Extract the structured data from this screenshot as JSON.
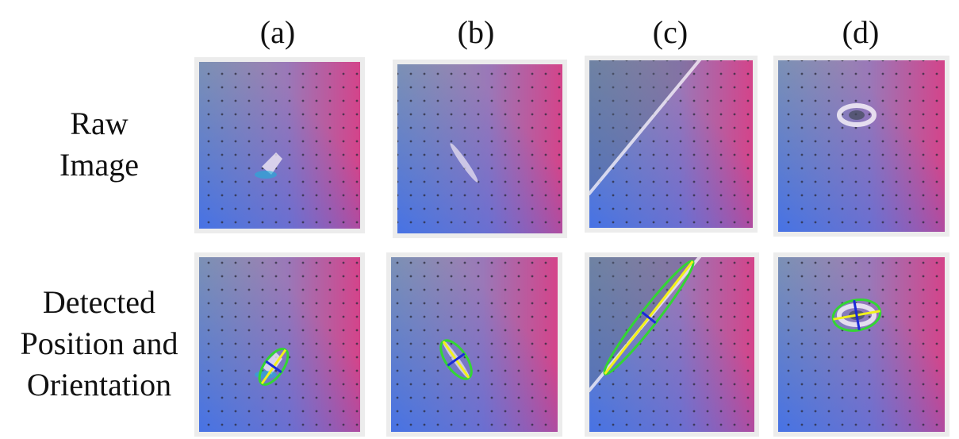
{
  "columns": [
    "(a)",
    "(b)",
    "(c)",
    "(d)"
  ],
  "rows": [
    {
      "label_lines": [
        "Raw",
        "Image"
      ]
    },
    {
      "label_lines": [
        "Detected",
        "Position and",
        "Orientation"
      ]
    }
  ]
}
